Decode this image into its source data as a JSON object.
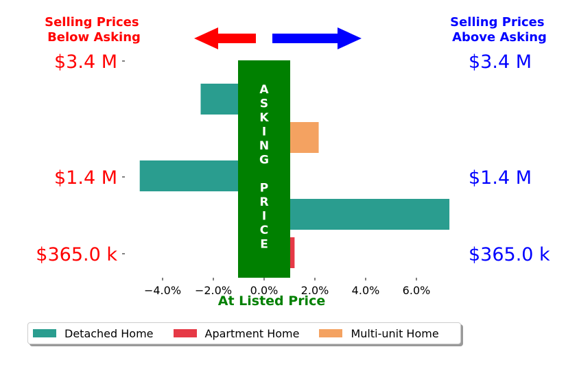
{
  "chart_data": {
    "type": "bar",
    "orientation": "horizontal",
    "center_label": "ASKING PRICE",
    "xlabel": "At Listed Price",
    "left_header": [
      "Selling Prices",
      "Below Asking"
    ],
    "right_header": [
      "Selling Prices",
      "Above Asking"
    ],
    "x_ticks": [
      "−4.0%",
      "−2.0%",
      "0.0%",
      "2.0%",
      "4.0%",
      "6.0%"
    ],
    "x_tick_values": [
      -4,
      -2,
      0,
      2,
      4,
      6
    ],
    "xlim": [
      -5.0,
      7.3
    ],
    "price_levels": [
      "$3.4 M",
      "$1.4 M",
      "$365.0 k"
    ],
    "series": [
      {
        "name": "Detached Home",
        "color": "#2a9d8f"
      },
      {
        "name": "Apartment Home",
        "color": "#e63946"
      },
      {
        "name": "Multi-unit Home",
        "color": "#f4a261"
      }
    ],
    "bars": [
      {
        "series": "Detached Home",
        "price_level": "$3.4 M",
        "value": -2.5
      },
      {
        "series": "Multi-unit Home",
        "price_level": "$3.4 M",
        "value": 2.15
      },
      {
        "series": "Detached Home",
        "price_level": "$1.4 M",
        "value": -4.9
      },
      {
        "series": "Detached Home",
        "price_level": "$1.4 M",
        "value": 7.3
      },
      {
        "series": "Apartment Home",
        "price_level": "$365.0 k",
        "value": 1.2
      }
    ],
    "colors": {
      "below": "#ff0000",
      "above": "#0000ff",
      "asking": "#008000"
    },
    "legend_position": "bottom-left",
    "grid": false
  }
}
